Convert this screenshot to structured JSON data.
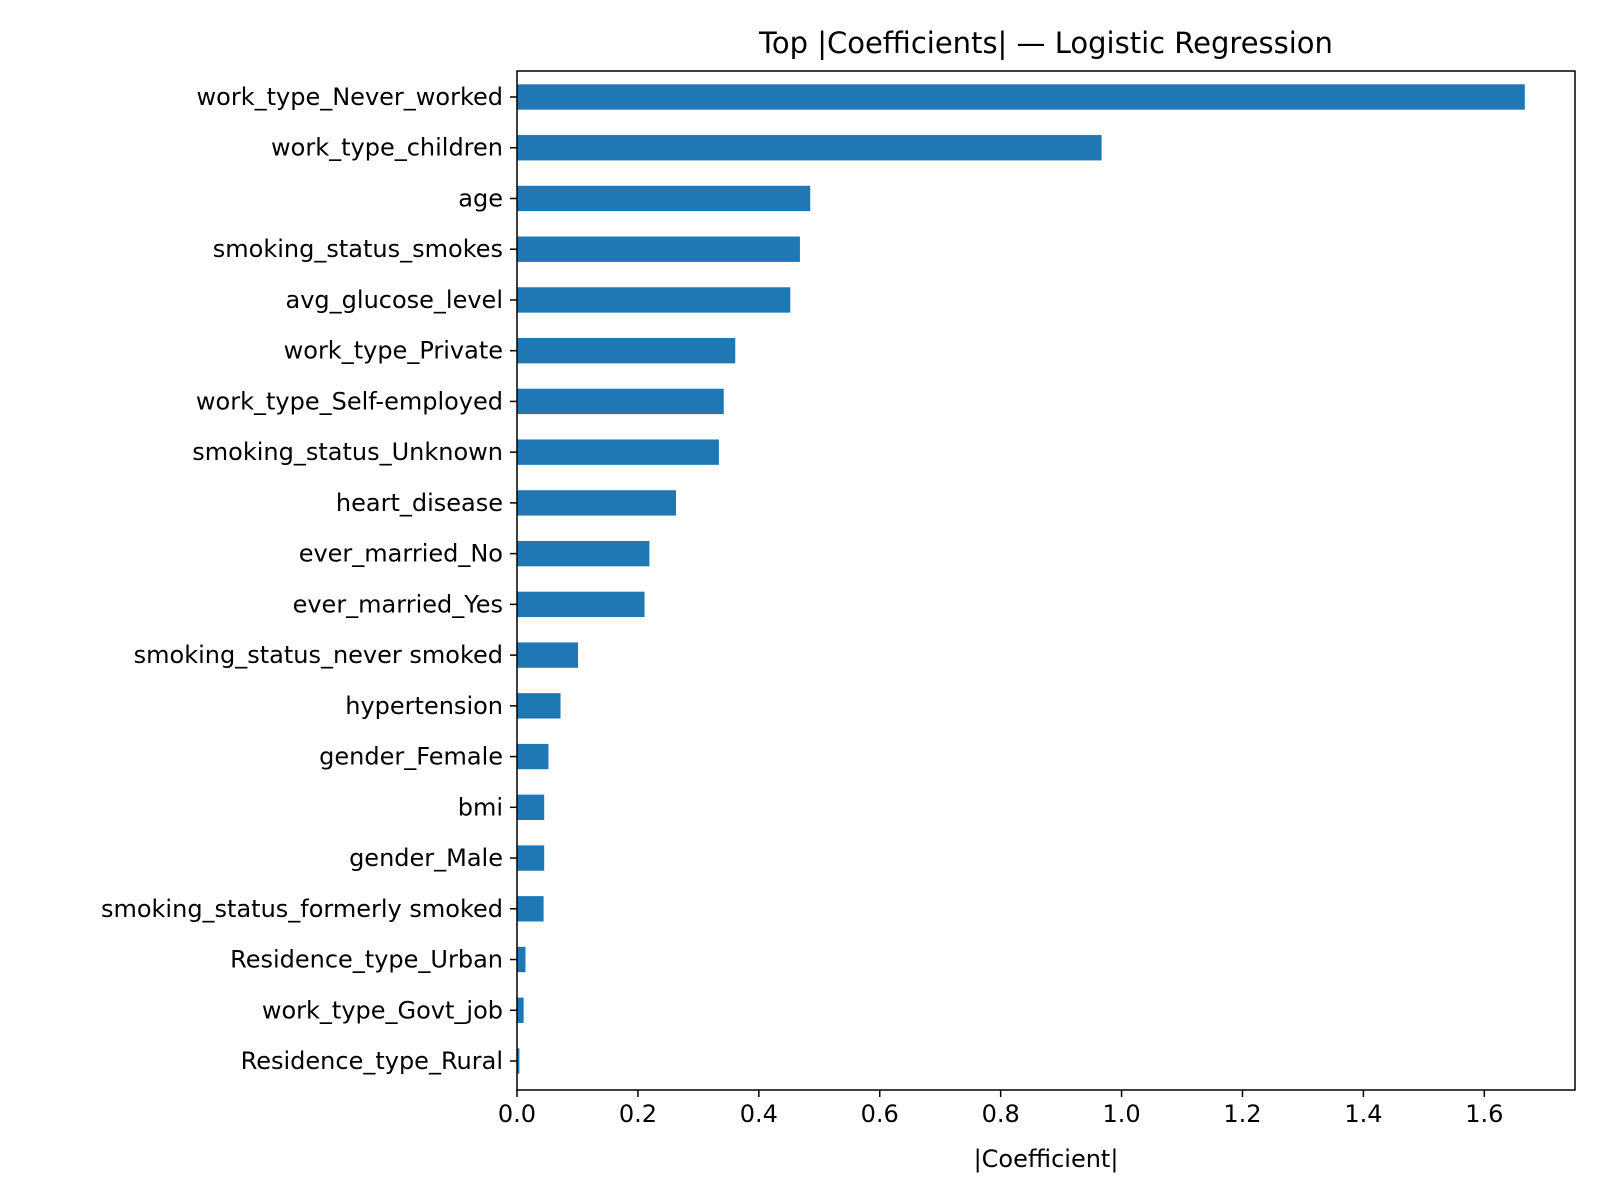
{
  "chart_data": {
    "type": "bar",
    "orientation": "horizontal",
    "title": "Top |Coefficients| — Logistic Regression",
    "xlabel": "|Coefficient|",
    "ylabel": "",
    "xlim": [
      0,
      1.75
    ],
    "xticks": [
      "0.0",
      "0.2",
      "0.4",
      "0.6",
      "0.8",
      "1.0",
      "1.2",
      "1.4",
      "1.6"
    ],
    "grid": false,
    "legend": "none",
    "bar_color": "#1f77b4",
    "categories": [
      "work_type_Never_worked",
      "work_type_children",
      "age",
      "smoking_status_smokes",
      "avg_glucose_level",
      "work_type_Private",
      "work_type_Self-employed",
      "smoking_status_Unknown",
      "heart_disease",
      "ever_married_No",
      "ever_married_Yes",
      "smoking_status_never smoked",
      "hypertension",
      "gender_Female",
      "bmi",
      "gender_Male",
      "smoking_status_formerly smoked",
      "Residence_type_Urban",
      "work_type_Govt_job",
      "Residence_type_Rural"
    ],
    "values": [
      1.667,
      0.967,
      0.485,
      0.468,
      0.452,
      0.361,
      0.342,
      0.334,
      0.263,
      0.219,
      0.211,
      0.101,
      0.072,
      0.052,
      0.045,
      0.045,
      0.044,
      0.014,
      0.011,
      0.004
    ]
  }
}
